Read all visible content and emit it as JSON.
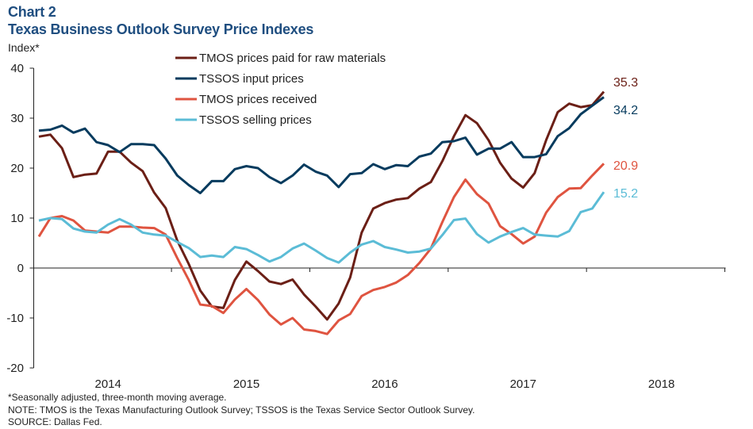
{
  "title": "Chart 2",
  "subtitle": "Texas Business Outlook Survey Price Indexes",
  "footnotes": [
    "*Seasonally adjusted, three-month  moving average.",
    "NOTE: TMOS is the Texas Manufacturing Outlook Survey; TSSOS is the Texas Service Sector Outlook Survey.",
    "SOURCE: Dallas Fed."
  ],
  "chart_data": {
    "type": "line",
    "title": "Texas Business Outlook Survey Price Indexes",
    "ylabel": "Index*",
    "xlabel": "",
    "ylim": [
      -20,
      40
    ],
    "yticks": [
      40,
      30,
      20,
      10,
      0,
      -10,
      -20
    ],
    "xticks": [
      {
        "label": "2014",
        "at": "2014-01"
      },
      {
        "label": "2015",
        "at": "2015-01"
      },
      {
        "label": "2016",
        "at": "2016-01"
      },
      {
        "label": "2017",
        "at": "2017-01"
      },
      {
        "label": "2018",
        "at": "2018-01"
      }
    ],
    "grid": false,
    "legend_position": "top-center",
    "x": [
      "2013-07",
      "2013-08",
      "2013-09",
      "2013-10",
      "2013-11",
      "2013-12",
      "2014-01",
      "2014-02",
      "2014-03",
      "2014-04",
      "2014-05",
      "2014-06",
      "2014-07",
      "2014-08",
      "2014-09",
      "2014-10",
      "2014-11",
      "2014-12",
      "2015-01",
      "2015-02",
      "2015-03",
      "2015-04",
      "2015-05",
      "2015-06",
      "2015-07",
      "2015-08",
      "2015-09",
      "2015-10",
      "2015-11",
      "2015-12",
      "2016-01",
      "2016-02",
      "2016-03",
      "2016-04",
      "2016-05",
      "2016-06",
      "2016-07",
      "2016-08",
      "2016-09",
      "2016-10",
      "2016-11",
      "2016-12",
      "2017-01",
      "2017-02",
      "2017-03",
      "2017-04",
      "2017-05",
      "2017-06",
      "2017-07",
      "2017-08"
    ],
    "series": [
      {
        "name": "TMOS prices paid for raw materials",
        "color": "#6b1f16",
        "end_label": "35.3",
        "values": [
          26.3,
          26.7,
          24.0,
          18.2,
          18.7,
          18.9,
          23.3,
          23.3,
          21.1,
          19.4,
          15.1,
          12.0,
          5.5,
          0.8,
          -4.5,
          -7.7,
          -8.0,
          -2.4,
          1.3,
          -0.6,
          -2.7,
          -3.2,
          -2.3,
          -5.3,
          -7.7,
          -10.3,
          -7.1,
          -1.9,
          7.1,
          11.9,
          13.0,
          13.7,
          14.0,
          15.9,
          17.2,
          21.4,
          26.4,
          30.6,
          29.0,
          25.6,
          21.1,
          17.9,
          16.1,
          19.0,
          25.6,
          31.2,
          32.9,
          32.2,
          32.6,
          35.3
        ]
      },
      {
        "name": "TSSOS input prices",
        "color": "#063b5e",
        "end_label": "34.2",
        "values": [
          27.5,
          27.7,
          28.5,
          27.1,
          27.9,
          25.2,
          24.6,
          23.2,
          24.8,
          24.8,
          24.6,
          21.9,
          18.5,
          16.6,
          15.0,
          17.4,
          17.4,
          19.8,
          20.4,
          20.0,
          18.2,
          17.0,
          18.5,
          20.7,
          19.3,
          18.5,
          16.2,
          18.8,
          19.0,
          20.8,
          19.8,
          20.6,
          20.4,
          22.3,
          22.9,
          25.2,
          25.4,
          26.1,
          22.7,
          23.9,
          23.9,
          25.2,
          22.2,
          22.2,
          22.8,
          26.4,
          28.0,
          30.8,
          32.5,
          34.2
        ]
      },
      {
        "name": "TMOS prices received",
        "color": "#df5440",
        "end_label": "20.9",
        "values": [
          6.3,
          10.0,
          10.4,
          9.5,
          7.5,
          7.3,
          7.1,
          8.3,
          8.3,
          8.1,
          8.0,
          6.7,
          2.0,
          -2.4,
          -7.3,
          -7.6,
          -9.0,
          -6.3,
          -4.2,
          -6.4,
          -9.3,
          -11.3,
          -10.0,
          -12.3,
          -12.6,
          -13.2,
          -10.5,
          -9.2,
          -5.6,
          -4.4,
          -3.8,
          -2.9,
          -1.4,
          1.0,
          3.9,
          9.2,
          14.2,
          17.7,
          14.8,
          12.9,
          8.4,
          6.8,
          4.9,
          6.3,
          11.1,
          14.2,
          15.9,
          16.0,
          18.5,
          20.9
        ]
      },
      {
        "name": "TSSOS selling prices",
        "color": "#5bbcd6",
        "end_label": "15.2",
        "values": [
          9.5,
          10.0,
          9.8,
          7.9,
          7.3,
          7.1,
          8.7,
          9.8,
          8.7,
          7.1,
          6.7,
          6.5,
          5.2,
          4.0,
          2.2,
          2.5,
          2.2,
          4.2,
          3.8,
          2.6,
          1.3,
          2.2,
          3.9,
          4.9,
          3.5,
          2.0,
          1.1,
          3.1,
          4.7,
          5.4,
          4.2,
          3.7,
          3.1,
          3.3,
          3.9,
          6.6,
          9.6,
          9.9,
          6.8,
          5.1,
          6.3,
          7.2,
          8.0,
          6.7,
          6.5,
          6.3,
          7.4,
          11.2,
          11.9,
          15.2
        ]
      }
    ]
  }
}
